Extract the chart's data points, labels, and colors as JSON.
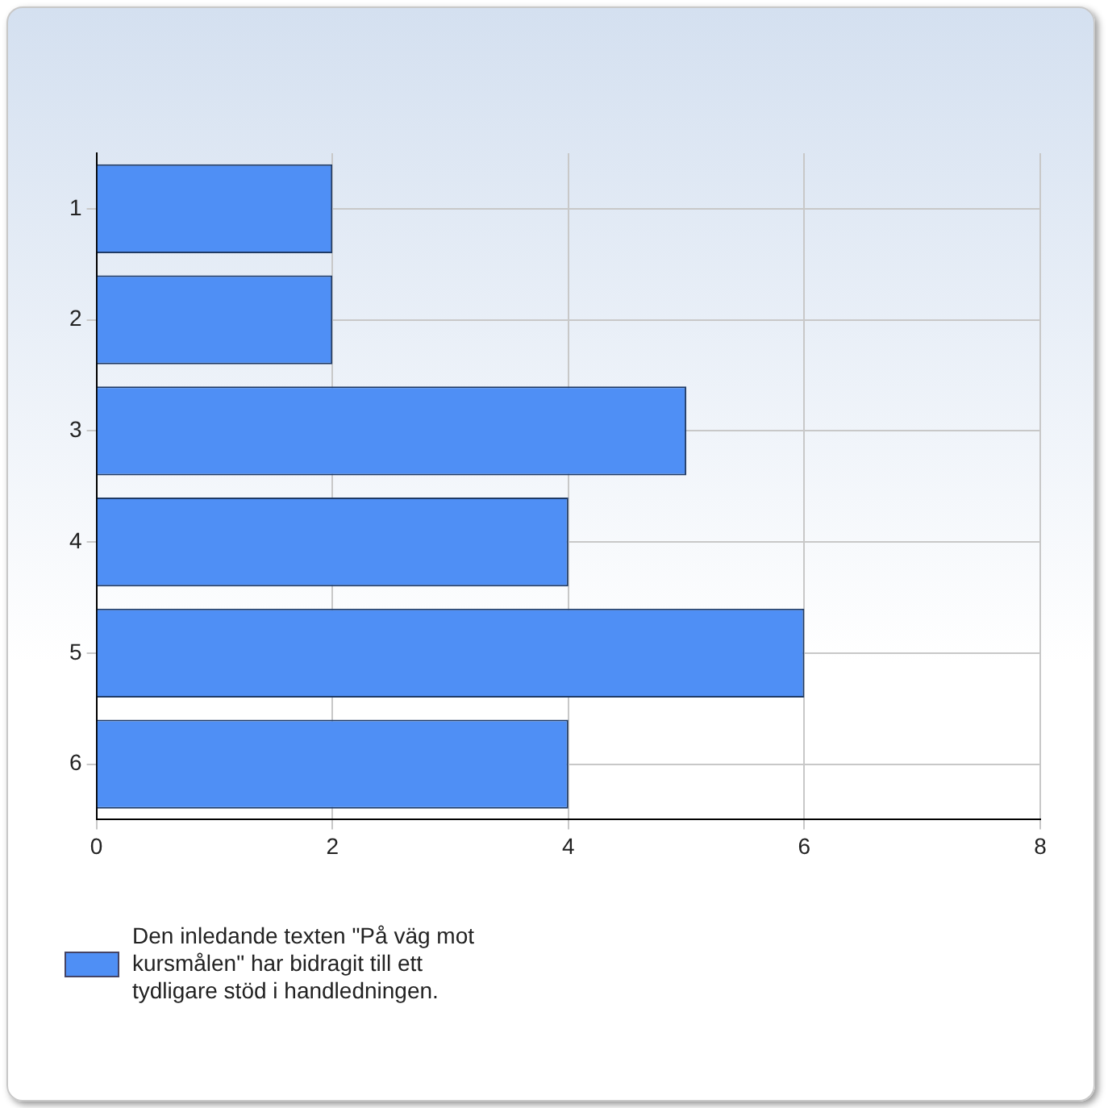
{
  "chart_data": {
    "type": "bar",
    "orientation": "horizontal",
    "categories": [
      "1",
      "2",
      "3",
      "4",
      "5",
      "6"
    ],
    "series": [
      {
        "name": "Den inledande texten \"På väg mot kursmålen\" har bidragit till ett tydligare stöd i handledningen.",
        "color": "#4f8ff5",
        "values": [
          2,
          2,
          5,
          4,
          6,
          4
        ]
      }
    ],
    "xlim": [
      0,
      8
    ],
    "xticks": [
      0,
      2,
      4,
      6,
      8
    ],
    "grid": true,
    "legend": "bottom left"
  }
}
